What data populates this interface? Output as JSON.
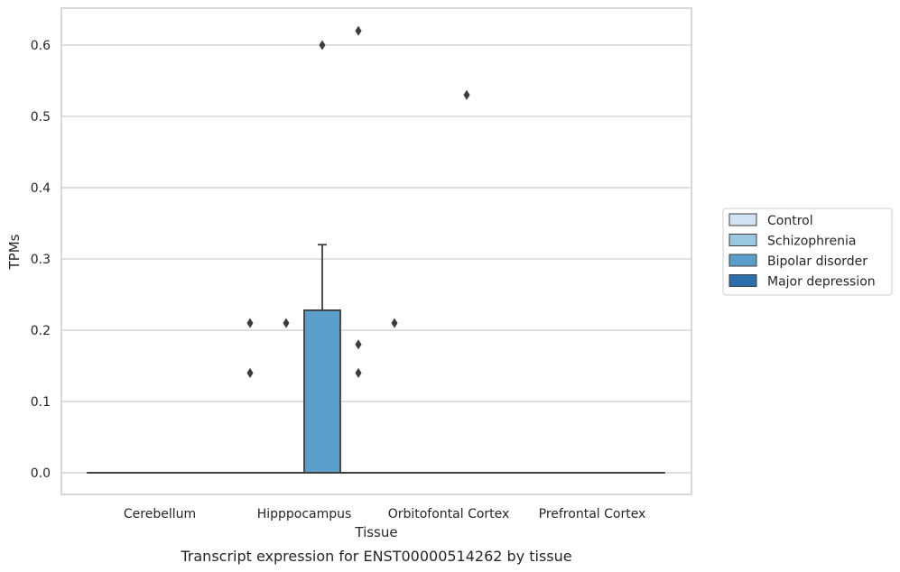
{
  "caption": "Transcript expression for ENST00000514262 by tissue",
  "chart_data": {
    "type": "box",
    "title": "",
    "xlabel": "Tissue",
    "ylabel": "TPMs",
    "ylim": [
      -0.03,
      0.65
    ],
    "yticks": [
      0.0,
      0.1,
      0.2,
      0.3,
      0.4,
      0.5,
      0.6
    ],
    "ytick_labels": [
      "0.0",
      "0.1",
      "0.2",
      "0.3",
      "0.4",
      "0.5",
      "0.6"
    ],
    "grid": true,
    "legend_position": "right",
    "categories": [
      "Cerebellum",
      "Hipppocampus",
      "Orbitofontal Cortex",
      "Prefrontal Cortex"
    ],
    "series": [
      {
        "name": "Control",
        "color": "#d2e3f3",
        "boxes": [
          {
            "category": "Cerebellum",
            "min": 0,
            "q1": 0,
            "median": 0,
            "q3": 0,
            "max": 0,
            "outliers": []
          },
          {
            "category": "Hipppocampus",
            "min": 0,
            "q1": 0,
            "median": 0,
            "q3": 0,
            "max": 0,
            "outliers": [
              0.14,
              0.21
            ]
          },
          {
            "category": "Orbitofontal Cortex",
            "min": 0,
            "q1": 0,
            "median": 0,
            "q3": 0,
            "max": 0,
            "outliers": [
              0.21
            ]
          },
          {
            "category": "Prefrontal Cortex",
            "min": 0,
            "q1": 0,
            "median": 0,
            "q3": 0,
            "max": 0,
            "outliers": []
          }
        ]
      },
      {
        "name": "Schizophrenia",
        "color": "#9ac8e0",
        "boxes": [
          {
            "category": "Cerebellum",
            "min": 0,
            "q1": 0,
            "median": 0,
            "q3": 0,
            "max": 0,
            "outliers": []
          },
          {
            "category": "Hipppocampus",
            "min": 0,
            "q1": 0,
            "median": 0,
            "q3": 0,
            "max": 0,
            "outliers": [
              0.21
            ]
          },
          {
            "category": "Orbitofontal Cortex",
            "min": 0,
            "q1": 0,
            "median": 0,
            "q3": 0,
            "max": 0,
            "outliers": []
          },
          {
            "category": "Prefrontal Cortex",
            "min": 0,
            "q1": 0,
            "median": 0,
            "q3": 0,
            "max": 0,
            "outliers": []
          }
        ]
      },
      {
        "name": "Bipolar disorder",
        "color": "#5a9ec9",
        "boxes": [
          {
            "category": "Cerebellum",
            "min": 0,
            "q1": 0,
            "median": 0,
            "q3": 0,
            "max": 0,
            "outliers": []
          },
          {
            "category": "Hipppocampus",
            "min": 0,
            "q1": 0,
            "median": 0,
            "q3": 0.228,
            "max": 0.32,
            "outliers": [
              0.6
            ]
          },
          {
            "category": "Orbitofontal Cortex",
            "min": 0,
            "q1": 0,
            "median": 0,
            "q3": 0,
            "max": 0,
            "outliers": [
              0.53
            ]
          },
          {
            "category": "Prefrontal Cortex",
            "min": 0,
            "q1": 0,
            "median": 0,
            "q3": 0,
            "max": 0,
            "outliers": []
          }
        ]
      },
      {
        "name": "Major depression",
        "color": "#2c6fad",
        "boxes": [
          {
            "category": "Cerebellum",
            "min": 0,
            "q1": 0,
            "median": 0,
            "q3": 0,
            "max": 0,
            "outliers": []
          },
          {
            "category": "Hipppocampus",
            "min": 0,
            "q1": 0,
            "median": 0,
            "q3": 0,
            "max": 0,
            "outliers": [
              0.14,
              0.18,
              0.62
            ]
          },
          {
            "category": "Orbitofontal Cortex",
            "min": 0,
            "q1": 0,
            "median": 0,
            "q3": 0,
            "max": 0,
            "outliers": []
          },
          {
            "category": "Prefrontal Cortex",
            "min": 0,
            "q1": 0,
            "median": 0,
            "q3": 0,
            "max": 0,
            "outliers": []
          }
        ]
      }
    ]
  },
  "colors": {
    "grid": "#cccccc",
    "frame": "#cccccc",
    "box_edge": "#3d3d3d",
    "text": "#262626"
  }
}
